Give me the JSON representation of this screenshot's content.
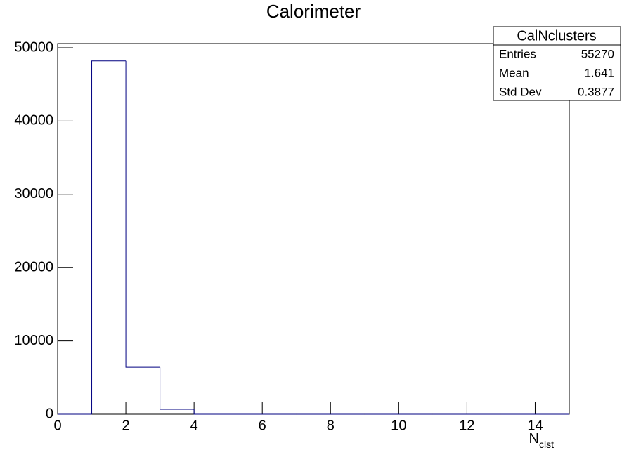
{
  "chart_data": {
    "type": "histogram",
    "title": "Calorimeter",
    "x_label": "N",
    "x_label_sub": "clst",
    "bins": [
      0,
      1,
      2,
      3,
      4,
      5,
      6,
      7,
      8,
      9,
      10,
      11,
      12,
      13,
      14,
      15
    ],
    "values": [
      0,
      48200,
      6400,
      670,
      0,
      0,
      0,
      0,
      0,
      0,
      0,
      0,
      0,
      0,
      0
    ],
    "color": "#000080",
    "xlim": [
      0,
      15
    ],
    "xticks": [
      0,
      2,
      4,
      6,
      8,
      10,
      12,
      14
    ],
    "ylim": [
      0,
      50000
    ],
    "yticks": [
      0,
      10000,
      20000,
      30000,
      40000,
      50000
    ],
    "grid": false,
    "stats": {
      "title": "CalNclusters",
      "rows": [
        {
          "label": "Entries",
          "value": 55270
        },
        {
          "label": "Mean",
          "value": 1.641
        },
        {
          "label": "Std Dev",
          "value": 0.3877
        }
      ]
    }
  }
}
